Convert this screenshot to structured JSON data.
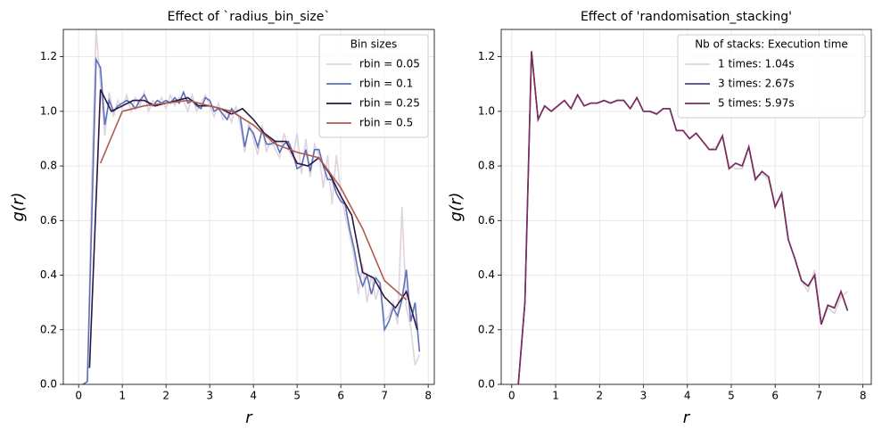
{
  "chart_data": [
    {
      "type": "line",
      "title": "Effect of `radius_bin_size`",
      "xlabel": "r",
      "ylabel": "g(r)",
      "xlim": [
        -0.35,
        8.14
      ],
      "ylim": [
        0,
        1.3
      ],
      "xticks": [
        0,
        1,
        2,
        3,
        4,
        5,
        6,
        7,
        8
      ],
      "yticks": [
        {
          "value": 0,
          "label": "0.0"
        },
        {
          "value": 0.2,
          "label": "0.2"
        },
        {
          "value": 0.4,
          "label": "0.4"
        },
        {
          "value": 0.6,
          "label": "0.6"
        },
        {
          "value": 0.8,
          "label": "0.8"
        },
        {
          "value": 1,
          "label": "1.0"
        },
        {
          "value": 1.2,
          "label": "1.2"
        }
      ],
      "grid": true,
      "legend": "upper right",
      "legend_title": "Bin sizes",
      "series": [
        {
          "name": "rbin = 0.05",
          "color": "#e0d3e0",
          "x": [
            0.1,
            0.2,
            0.3,
            0.4,
            0.5,
            0.6,
            0.7,
            0.8,
            0.9,
            1.0,
            1.1,
            1.2,
            1.3,
            1.4,
            1.5,
            1.6,
            1.7,
            1.8,
            1.9,
            2.0,
            2.1,
            2.2,
            2.3,
            2.4,
            2.5,
            2.6,
            2.7,
            2.8,
            2.9,
            3.0,
            3.1,
            3.2,
            3.3,
            3.4,
            3.5,
            3.6,
            3.7,
            3.8,
            3.9,
            4.0,
            4.1,
            4.2,
            4.3,
            4.4,
            4.5,
            4.6,
            4.7,
            4.8,
            4.9,
            5.0,
            5.1,
            5.2,
            5.3,
            5.4,
            5.5,
            5.6,
            5.7,
            5.8,
            5.9,
            6.0,
            6.1,
            6.2,
            6.3,
            6.4,
            6.5,
            6.6,
            6.7,
            6.8,
            6.9,
            7.0,
            7.1,
            7.2,
            7.3,
            7.4,
            7.5,
            7.6,
            7.7,
            7.8
          ],
          "values": [
            0,
            0.01,
            0.75,
            1.3,
            1.1,
            0.91,
            1.07,
            0.98,
            1.04,
            1.01,
            1.06,
            1.0,
            1.05,
            1.02,
            1.07,
            1.0,
            1.04,
            1.02,
            1.05,
            1.01,
            1.06,
            1.02,
            1.05,
            1.04,
            1.0,
            1.06,
            1.0,
            1.03,
            1.06,
            1.02,
            0.98,
            1.03,
            0.97,
            1.0,
            0.96,
            1.02,
            0.95,
            0.85,
            0.96,
            0.9,
            0.84,
            0.95,
            0.85,
            0.9,
            0.86,
            0.83,
            0.92,
            0.86,
            0.83,
            0.92,
            0.77,
            0.9,
            0.76,
            0.88,
            0.84,
            0.72,
            0.84,
            0.66,
            0.84,
            0.7,
            0.62,
            0.55,
            0.47,
            0.33,
            0.44,
            0.3,
            0.4,
            0.31,
            0.37,
            0.23,
            0.25,
            0.3,
            0.22,
            0.65,
            0.28,
            0.21,
            0.07,
            0.11
          ]
        },
        {
          "name": "rbin = 0.1",
          "color": "#5b72b8",
          "x": [
            0.1,
            0.2,
            0.3,
            0.4,
            0.5,
            0.6,
            0.7,
            0.8,
            0.9,
            1.0,
            1.1,
            1.2,
            1.3,
            1.4,
            1.5,
            1.6,
            1.7,
            1.8,
            1.9,
            2.0,
            2.1,
            2.2,
            2.3,
            2.4,
            2.5,
            2.6,
            2.7,
            2.8,
            2.9,
            3.0,
            3.1,
            3.2,
            3.3,
            3.4,
            3.5,
            3.6,
            3.7,
            3.8,
            3.9,
            4.0,
            4.1,
            4.2,
            4.3,
            4.4,
            4.5,
            4.6,
            4.7,
            4.8,
            4.9,
            5.0,
            5.1,
            5.2,
            5.3,
            5.4,
            5.5,
            5.6,
            5.7,
            5.8,
            5.9,
            6.0,
            6.1,
            6.2,
            6.3,
            6.4,
            6.5,
            6.6,
            6.7,
            6.8,
            6.9,
            7.0,
            7.1,
            7.2,
            7.3,
            7.4,
            7.5,
            7.6,
            7.7,
            7.8
          ],
          "values": [
            0,
            0.01,
            0.6,
            1.19,
            1.16,
            0.95,
            1.04,
            1.0,
            1.02,
            1.03,
            1.04,
            1.03,
            1.01,
            1.04,
            1.06,
            1.03,
            1.02,
            1.04,
            1.03,
            1.04,
            1.03,
            1.05,
            1.03,
            1.07,
            1.03,
            1.04,
            1.02,
            1.01,
            1.05,
            1.04,
            1.0,
            1.01,
            0.99,
            0.97,
            1.01,
            0.99,
            0.98,
            0.87,
            0.94,
            0.92,
            0.87,
            0.93,
            0.88,
            0.88,
            0.89,
            0.85,
            0.88,
            0.89,
            0.85,
            0.79,
            0.8,
            0.86,
            0.78,
            0.86,
            0.86,
            0.8,
            0.75,
            0.75,
            0.7,
            0.67,
            0.66,
            0.57,
            0.5,
            0.41,
            0.36,
            0.4,
            0.33,
            0.39,
            0.37,
            0.2,
            0.23,
            0.28,
            0.25,
            0.31,
            0.42,
            0.23,
            0.3,
            0.12
          ]
        },
        {
          "name": "rbin = 0.25",
          "color": "#2d1640",
          "x": [
            0.25,
            0.5,
            0.75,
            1.0,
            1.25,
            1.5,
            1.75,
            2.0,
            2.25,
            2.5,
            2.75,
            3.0,
            3.25,
            3.5,
            3.75,
            4.0,
            4.25,
            4.5,
            4.75,
            5.0,
            5.25,
            5.5,
            5.75,
            6.0,
            6.25,
            6.5,
            6.75,
            7.0,
            7.25,
            7.5,
            7.75
          ],
          "values": [
            0.06,
            1.08,
            1.0,
            1.02,
            1.04,
            1.04,
            1.02,
            1.03,
            1.04,
            1.05,
            1.02,
            1.02,
            1.01,
            0.99,
            1.01,
            0.97,
            0.92,
            0.89,
            0.89,
            0.81,
            0.8,
            0.83,
            0.77,
            0.69,
            0.62,
            0.41,
            0.39,
            0.32,
            0.28,
            0.34,
            0.2
          ]
        },
        {
          "name": "rbin = 0.5",
          "color": "#b05a50",
          "x": [
            0.5,
            1.0,
            1.5,
            2.0,
            2.5,
            3.0,
            3.5,
            4.0,
            4.5,
            5.0,
            5.5,
            6.0,
            6.5,
            7.0,
            7.5
          ],
          "values": [
            0.81,
            1.0,
            1.02,
            1.03,
            1.04,
            1.02,
            1.0,
            0.95,
            0.88,
            0.85,
            0.83,
            0.72,
            0.57,
            0.38,
            0.31
          ]
        }
      ]
    },
    {
      "type": "line",
      "title": "Effect of 'randomisation_stacking'",
      "xlabel": "r",
      "ylabel": "g(r)",
      "xlim": [
        -0.24,
        8.19
      ],
      "ylim": [
        0,
        1.3
      ],
      "xticks": [
        0,
        1,
        2,
        3,
        4,
        5,
        6,
        7,
        8
      ],
      "yticks": [
        {
          "value": 0,
          "label": "0.0"
        },
        {
          "value": 0.2,
          "label": "0.2"
        },
        {
          "value": 0.4,
          "label": "0.4"
        },
        {
          "value": 0.6,
          "label": "0.6"
        },
        {
          "value": 0.8,
          "label": "0.8"
        },
        {
          "value": 1,
          "label": "1.0"
        },
        {
          "value": 1.2,
          "label": "1.2"
        }
      ],
      "grid": true,
      "legend": "upper right",
      "legend_title": "Nb of stacks: Execution time",
      "series": [
        {
          "name": "1 times: 1.04s",
          "color": "#ddd3dd",
          "x": [
            0.15,
            0.3,
            0.45,
            0.6,
            0.75,
            0.9,
            1.05,
            1.2,
            1.35,
            1.5,
            1.65,
            1.8,
            1.95,
            2.1,
            2.25,
            2.4,
            2.55,
            2.7,
            2.85,
            3.0,
            3.15,
            3.3,
            3.45,
            3.6,
            3.75,
            3.9,
            4.05,
            4.2,
            4.35,
            4.5,
            4.65,
            4.8,
            4.95,
            5.1,
            5.25,
            5.4,
            5.55,
            5.7,
            5.85,
            6.0,
            6.15,
            6.3,
            6.45,
            6.6,
            6.75,
            6.9,
            7.05,
            7.2,
            7.35,
            7.5,
            7.65
          ],
          "values": [
            0,
            0.3,
            1.22,
            0.97,
            1.02,
            1.0,
            1.02,
            1.04,
            1.01,
            1.06,
            1.02,
            1.03,
            1.03,
            1.04,
            1.03,
            1.04,
            1.04,
            1.01,
            1.05,
            1.0,
            1.0,
            0.99,
            1.01,
            1.01,
            0.93,
            0.93,
            0.9,
            0.92,
            0.89,
            0.86,
            0.87,
            0.91,
            0.8,
            0.79,
            0.79,
            0.87,
            0.76,
            0.77,
            0.75,
            0.66,
            0.69,
            0.53,
            0.46,
            0.38,
            0.34,
            0.42,
            0.22,
            0.28,
            0.26,
            0.32,
            0.34
          ]
        },
        {
          "name": "3 times: 2.67s",
          "color": "#5a3e8f",
          "x": [
            0.15,
            0.3,
            0.45,
            0.6,
            0.75,
            0.9,
            1.05,
            1.2,
            1.35,
            1.5,
            1.65,
            1.8,
            1.95,
            2.1,
            2.25,
            2.4,
            2.55,
            2.7,
            2.85,
            3.0,
            3.15,
            3.3,
            3.45,
            3.6,
            3.75,
            3.9,
            4.05,
            4.2,
            4.35,
            4.5,
            4.65,
            4.8,
            4.95,
            5.1,
            5.25,
            5.4,
            5.55,
            5.7,
            5.85,
            6.0,
            6.15,
            6.3,
            6.45,
            6.6,
            6.75,
            6.9,
            7.05,
            7.2,
            7.35,
            7.5,
            7.65
          ],
          "values": [
            0,
            0.3,
            1.22,
            0.97,
            1.02,
            1.0,
            1.02,
            1.04,
            1.01,
            1.06,
            1.02,
            1.03,
            1.03,
            1.04,
            1.03,
            1.04,
            1.04,
            1.01,
            1.05,
            1.0,
            1.0,
            0.99,
            1.01,
            1.01,
            0.93,
            0.93,
            0.9,
            0.92,
            0.89,
            0.86,
            0.86,
            0.91,
            0.79,
            0.81,
            0.8,
            0.87,
            0.75,
            0.78,
            0.76,
            0.65,
            0.7,
            0.53,
            0.46,
            0.38,
            0.36,
            0.4,
            0.22,
            0.29,
            0.28,
            0.34,
            0.27
          ]
        },
        {
          "name": "5 times: 5.97s",
          "color": "#7b2d5c",
          "x": [
            0.15,
            0.3,
            0.45,
            0.6,
            0.75,
            0.9,
            1.05,
            1.2,
            1.35,
            1.5,
            1.65,
            1.8,
            1.95,
            2.1,
            2.25,
            2.4,
            2.55,
            2.7,
            2.85,
            3.0,
            3.15,
            3.3,
            3.45,
            3.6,
            3.75,
            3.9,
            4.05,
            4.2,
            4.35,
            4.5,
            4.65,
            4.8,
            4.95,
            5.1,
            5.25,
            5.4,
            5.55,
            5.7,
            5.85,
            6.0,
            6.15,
            6.3,
            6.45,
            6.6,
            6.75,
            6.9,
            7.05,
            7.2,
            7.35,
            7.5,
            7.65
          ],
          "values": [
            0,
            0.3,
            1.22,
            0.97,
            1.02,
            1.0,
            1.02,
            1.04,
            1.01,
            1.06,
            1.02,
            1.03,
            1.03,
            1.04,
            1.03,
            1.04,
            1.04,
            1.01,
            1.05,
            1.0,
            1.0,
            0.99,
            1.01,
            1.01,
            0.93,
            0.93,
            0.9,
            0.92,
            0.89,
            0.86,
            0.86,
            0.91,
            0.79,
            0.81,
            0.8,
            0.87,
            0.75,
            0.78,
            0.76,
            0.65,
            0.7,
            0.53,
            0.46,
            0.38,
            0.36,
            0.4,
            0.22,
            0.29,
            0.28,
            0.34,
            0.27
          ]
        }
      ]
    }
  ]
}
